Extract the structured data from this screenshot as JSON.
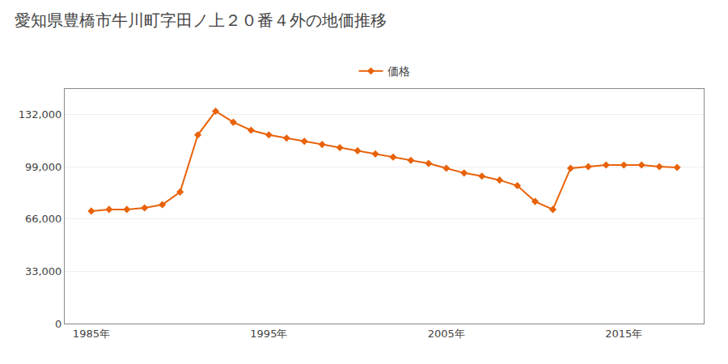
{
  "chart_data": {
    "type": "line",
    "title": "愛知県豊橋市牛川町字田ノ上２０番４外の地価推移",
    "x": [
      1985,
      1986,
      1987,
      1988,
      1989,
      1990,
      1991,
      1992,
      1993,
      1994,
      1995,
      1996,
      1997,
      1998,
      1999,
      2000,
      2001,
      2002,
      2003,
      2004,
      2005,
      2006,
      2007,
      2008,
      2009,
      2010,
      2011,
      2012,
      2013,
      2014,
      2015,
      2016,
      2017,
      2018
    ],
    "series": [
      {
        "name": "価格",
        "color": "#e8620a",
        "marker": "diamond",
        "values": [
          71000,
          72000,
          72000,
          73000,
          75000,
          83000,
          119000,
          134000,
          127000,
          122000,
          119000,
          117000,
          115000,
          113000,
          111000,
          109000,
          107000,
          105000,
          103000,
          101000,
          98000,
          95000,
          93000,
          90500,
          87000,
          77000,
          72000,
          98000,
          99000,
          100000,
          100000,
          100000,
          99000,
          98500
        ]
      }
    ],
    "xlim": [
      1983.5,
      2019.5
    ],
    "xticks": [
      {
        "value": 1985,
        "label": "1985年"
      },
      {
        "value": 1995,
        "label": "1995年"
      },
      {
        "value": 2005,
        "label": "2005年"
      },
      {
        "value": 2015,
        "label": "2015年"
      }
    ],
    "ylim": [
      0,
      148000
    ],
    "yticks": [
      0,
      {
        "value": 33000,
        "label": "33,000"
      },
      {
        "value": 66000,
        "label": "66,000"
      },
      {
        "value": 99000,
        "label": "99,000"
      },
      {
        "value": 132000,
        "label": "132,000"
      }
    ],
    "grid": "y",
    "legend": "top"
  }
}
